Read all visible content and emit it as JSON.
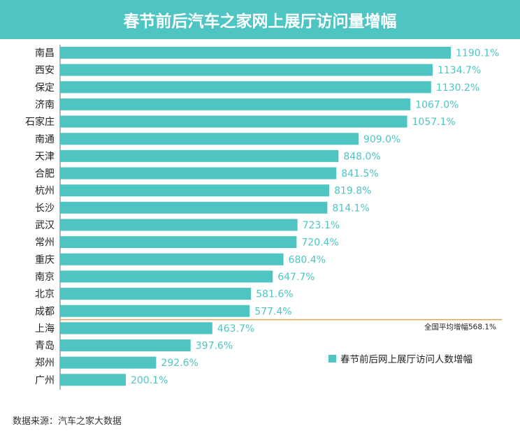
{
  "header": {
    "title": "春节前后汽车之家网上展厅访问量增幅"
  },
  "footer": {
    "source": "数据来源：汽车之家大数据"
  },
  "colors": {
    "header_bg": "#4ec5c2",
    "bar": "#4ec5c2",
    "avg_line": "#e4a259",
    "value_text": "#4ec5c2"
  },
  "chart_data": {
    "type": "bar",
    "orientation": "horizontal",
    "title": "春节前后汽车之家网上展厅访问量增幅",
    "categories": [
      "南昌",
      "西安",
      "保定",
      "济南",
      "石家庄",
      "南通",
      "天津",
      "合肥",
      "杭州",
      "长沙",
      "武汉",
      "常州",
      "重庆",
      "南京",
      "北京",
      "成都",
      "上海",
      "青岛",
      "郑州",
      "广州"
    ],
    "series": [
      {
        "name": "春节前后网上展厅访问人数增幅",
        "values": [
          1190.1,
          1134.7,
          1130.2,
          1067.0,
          1057.1,
          909.0,
          848.0,
          841.5,
          819.8,
          814.1,
          723.1,
          720.4,
          680.4,
          647.7,
          581.6,
          577.4,
          463.7,
          397.6,
          292.6,
          200.1
        ]
      }
    ],
    "value_labels": [
      "1190.1%",
      "1134.7%",
      "1130.2%",
      "1067.0%",
      "1057.1%",
      "909.0%",
      "848.0%",
      "841.5%",
      "819.8%",
      "814.1%",
      "723.1%",
      "720.4%",
      "680.4%",
      "647.7%",
      "581.6%",
      "577.4%",
      "463.7%",
      "397.6%",
      "292.6%",
      "200.1%"
    ],
    "reference_line": {
      "label": "全国平均增幅568.1%",
      "value": 568.1
    },
    "legend": {
      "position": "bottom-right",
      "label": "春节前后网上展厅访问人数增幅"
    },
    "xlim": [
      0,
      1190.1
    ],
    "grid": false
  }
}
